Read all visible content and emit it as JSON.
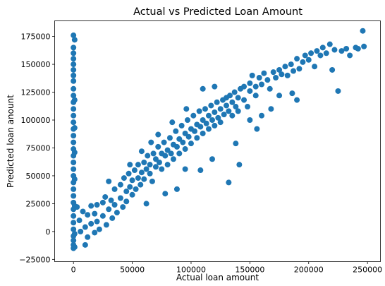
{
  "chart_data": {
    "type": "scatter",
    "title": "Actual vs Predicted Loan Amount",
    "xlabel": "Actual loan amount",
    "ylabel": "Predicted loan anount",
    "xlim": [
      -16000,
      261000
    ],
    "ylim": [
      -27000,
      189000
    ],
    "x_ticks": [
      0,
      50000,
      100000,
      150000,
      200000,
      250000
    ],
    "x_tick_labels": [
      "0",
      "50000",
      "100000",
      "150000",
      "200000",
      "250000"
    ],
    "y_ticks": [
      -25000,
      0,
      25000,
      50000,
      75000,
      100000,
      125000,
      150000,
      175000
    ],
    "y_tick_labels": [
      "−25000",
      "0",
      "25000",
      "50000",
      "75000",
      "100000",
      "125000",
      "150000",
      "175000"
    ],
    "grid": false,
    "legend": "none",
    "marker_color": "#1f77b4",
    "series": [
      {
        "points": [
          [
            0,
            176000
          ],
          [
            0,
            165000
          ],
          [
            0,
            160000
          ],
          [
            0,
            155000
          ],
          [
            0,
            150000
          ],
          [
            0,
            145000
          ],
          [
            0,
            140000
          ],
          [
            0,
            135000
          ],
          [
            0,
            128000
          ],
          [
            0,
            122000
          ],
          [
            0,
            116000
          ],
          [
            0,
            110000
          ],
          [
            0,
            104000
          ],
          [
            0,
            98000
          ],
          [
            0,
            92000
          ],
          [
            0,
            86000
          ],
          [
            0,
            80000
          ],
          [
            0,
            74000
          ],
          [
            0,
            68000
          ],
          [
            0,
            62000
          ],
          [
            0,
            56000
          ],
          [
            0,
            50000
          ],
          [
            0,
            44000
          ],
          [
            0,
            38000
          ],
          [
            0,
            32000
          ],
          [
            0,
            26000
          ],
          [
            0,
            20000
          ],
          [
            0,
            14000
          ],
          [
            0,
            8000
          ],
          [
            0,
            2000
          ],
          [
            0,
            -4000
          ],
          [
            0,
            -8000
          ],
          [
            0,
            -12000
          ],
          [
            0,
            -15000
          ],
          [
            1000,
            172000
          ],
          [
            1000,
            118000
          ],
          [
            1000,
            93000
          ],
          [
            1000,
            71000
          ],
          [
            1000,
            47000
          ],
          [
            1000,
            23000
          ],
          [
            1000,
            -2000
          ],
          [
            1000,
            -14000
          ],
          [
            3000,
            22000
          ],
          [
            5000,
            10000
          ],
          [
            6000,
            0
          ],
          [
            8000,
            18000
          ],
          [
            10000,
            4000
          ],
          [
            10000,
            -12000
          ],
          [
            12000,
            15000
          ],
          [
            12000,
            -5000
          ],
          [
            15000,
            23000
          ],
          [
            15000,
            7000
          ],
          [
            18000,
            16000
          ],
          [
            18000,
            -1000
          ],
          [
            20000,
            24000
          ],
          [
            20000,
            9000
          ],
          [
            22000,
            2000
          ],
          [
            25000,
            26000
          ],
          [
            25000,
            14000
          ],
          [
            27000,
            31000
          ],
          [
            28000,
            6000
          ],
          [
            30000,
            45000
          ],
          [
            30000,
            20000
          ],
          [
            32000,
            28000
          ],
          [
            33000,
            12000
          ],
          [
            35000,
            38000
          ],
          [
            35000,
            24000
          ],
          [
            37000,
            17000
          ],
          [
            40000,
            42000
          ],
          [
            40000,
            30000
          ],
          [
            42000,
            22000
          ],
          [
            43000,
            48000
          ],
          [
            45000,
            36000
          ],
          [
            45000,
            27000
          ],
          [
            47000,
            52000
          ],
          [
            48000,
            40000
          ],
          [
            50000,
            46000
          ],
          [
            50000,
            33000
          ],
          [
            52000,
            55000
          ],
          [
            53000,
            38000
          ],
          [
            55000,
            48000
          ],
          [
            55000,
            60000
          ],
          [
            57000,
            42000
          ],
          [
            58000,
            53000
          ],
          [
            60000,
            62000
          ],
          [
            60000,
            47000
          ],
          [
            62000,
            56000
          ],
          [
            63000,
            68000
          ],
          [
            65000,
            52000
          ],
          [
            65000,
            60000
          ],
          [
            67000,
            45000
          ],
          [
            68000,
            70000
          ],
          [
            70000,
            58000
          ],
          [
            70000,
            65000
          ],
          [
            72000,
            76000
          ],
          [
            73000,
            62000
          ],
          [
            75000,
            70000
          ],
          [
            75000,
            56000
          ],
          [
            77000,
            80000
          ],
          [
            78000,
            68000
          ],
          [
            80000,
            73000
          ],
          [
            80000,
            60000
          ],
          [
            82000,
            84000
          ],
          [
            83000,
            70000
          ],
          [
            85000,
            78000
          ],
          [
            85000,
            65000
          ],
          [
            87000,
            90000
          ],
          [
            88000,
            76000
          ],
          [
            90000,
            83000
          ],
          [
            90000,
            70000
          ],
          [
            92000,
            95000
          ],
          [
            93000,
            80000
          ],
          [
            95000,
            88000
          ],
          [
            95000,
            74000
          ],
          [
            97000,
            100000
          ],
          [
            98000,
            85000
          ],
          [
            100000,
            92000
          ],
          [
            100000,
            79000
          ],
          [
            102000,
            104000
          ],
          [
            103000,
            90000
          ],
          [
            105000,
            96000
          ],
          [
            105000,
            84000
          ],
          [
            107000,
            108000
          ],
          [
            108000,
            94000
          ],
          [
            110000,
            100000
          ],
          [
            110000,
            88000
          ],
          [
            112000,
            110000
          ],
          [
            113000,
            97000
          ],
          [
            115000,
            104000
          ],
          [
            115000,
            92000
          ],
          [
            117000,
            113000
          ],
          [
            118000,
            100000
          ],
          [
            120000,
            107000
          ],
          [
            120000,
            95000
          ],
          [
            122000,
            116000
          ],
          [
            123000,
            102000
          ],
          [
            125000,
            110000
          ],
          [
            125000,
            98000
          ],
          [
            127000,
            118000
          ],
          [
            128000,
            105000
          ],
          [
            130000,
            113000
          ],
          [
            130000,
            120000
          ],
          [
            132000,
            108000
          ],
          [
            133000,
            122000
          ],
          [
            135000,
            116000
          ],
          [
            135000,
            104000
          ],
          [
            137000,
            125000
          ],
          [
            138000,
            112000
          ],
          [
            140000,
            120000
          ],
          [
            140000,
            108000
          ],
          [
            142000,
            128000
          ],
          [
            145000,
            118000
          ],
          [
            145000,
            130000
          ],
          [
            148000,
            112000
          ],
          [
            150000,
            126000
          ],
          [
            150000,
            133000
          ],
          [
            152000,
            140000
          ],
          [
            155000,
            130000
          ],
          [
            155000,
            122000
          ],
          [
            158000,
            138000
          ],
          [
            160000,
            132000
          ],
          [
            162000,
            142000
          ],
          [
            165000,
            136000
          ],
          [
            167000,
            128000
          ],
          [
            170000,
            143000
          ],
          [
            172000,
            138000
          ],
          [
            175000,
            145000
          ],
          [
            177000,
            141000
          ],
          [
            180000,
            148000
          ],
          [
            182000,
            140000
          ],
          [
            185000,
            150000
          ],
          [
            187000,
            144000
          ],
          [
            190000,
            155000
          ],
          [
            192000,
            146000
          ],
          [
            195000,
            152000
          ],
          [
            197000,
            158000
          ],
          [
            200000,
            154000
          ],
          [
            202000,
            160000
          ],
          [
            205000,
            148000
          ],
          [
            207000,
            162000
          ],
          [
            210000,
            158000
          ],
          [
            212000,
            165000
          ],
          [
            215000,
            160000
          ],
          [
            218000,
            168000
          ],
          [
            220000,
            145000
          ],
          [
            222000,
            163000
          ],
          [
            225000,
            126000
          ],
          [
            228000,
            162000
          ],
          [
            232000,
            164000
          ],
          [
            235000,
            158000
          ],
          [
            240000,
            165000
          ],
          [
            242000,
            164000
          ],
          [
            246000,
            180000
          ],
          [
            247000,
            166000
          ],
          [
            141000,
            60000
          ],
          [
            132000,
            44000
          ],
          [
            95000,
            56000
          ],
          [
            118000,
            65000
          ],
          [
            78000,
            34000
          ],
          [
            108000,
            55000
          ],
          [
            62000,
            25000
          ],
          [
            88000,
            38000
          ],
          [
            150000,
            100000
          ],
          [
            160000,
            104000
          ],
          [
            175000,
            122000
          ],
          [
            186000,
            124000
          ],
          [
            190000,
            118000
          ],
          [
            168000,
            110000
          ],
          [
            156000,
            92000
          ],
          [
            138000,
            79000
          ],
          [
            72000,
            87000
          ],
          [
            84000,
            98000
          ],
          [
            96000,
            110000
          ],
          [
            58000,
            72000
          ],
          [
            48000,
            60000
          ],
          [
            66000,
            80000
          ],
          [
            110000,
            128000
          ],
          [
            120000,
            130000
          ]
        ]
      }
    ]
  }
}
